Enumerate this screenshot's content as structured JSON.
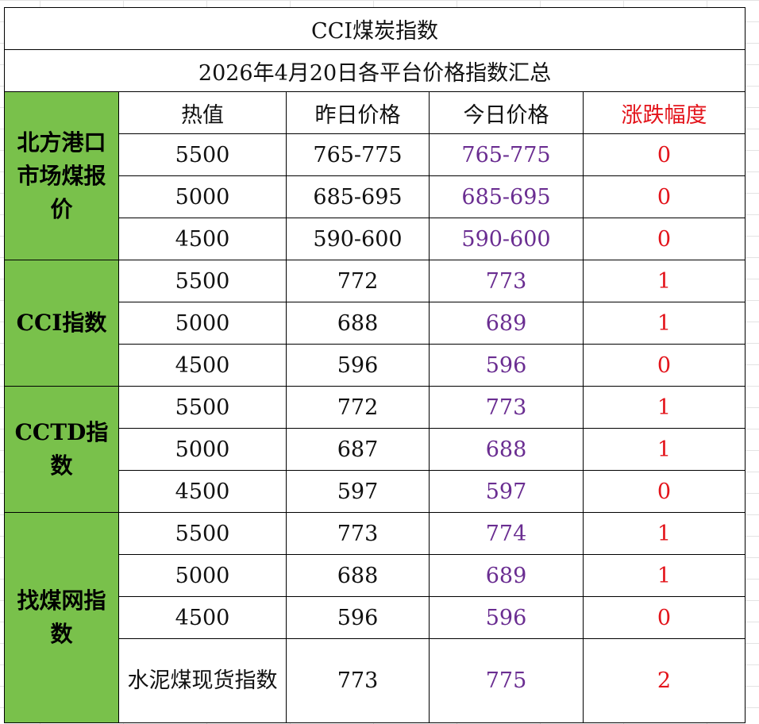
{
  "title": "CCI煤炭指数",
  "subtitle": "2026年4月20日各平台价格指数汇总",
  "headers": {
    "calorific": "热值",
    "yesterday": "昨日价格",
    "today": "今日价格",
    "change": "涨跌幅度"
  },
  "colors": {
    "group_fill": "#79c14b",
    "today_text": "#6a2d91",
    "change_text": "#e3141b"
  },
  "groups": [
    {
      "label": "北方港口市场煤报价",
      "rows": [
        {
          "calorific": "5500",
          "yesterday": "765-775",
          "today": "765-775",
          "change": "0"
        },
        {
          "calorific": "5000",
          "yesterday": "685-695",
          "today": "685-695",
          "change": "0"
        },
        {
          "calorific": "4500",
          "yesterday": "590-600",
          "today": "590-600",
          "change": "0"
        }
      ]
    },
    {
      "label": "CCI指数",
      "rows": [
        {
          "calorific": "5500",
          "yesterday": "772",
          "today": "773",
          "change": "1"
        },
        {
          "calorific": "5000",
          "yesterday": "688",
          "today": "689",
          "change": "1"
        },
        {
          "calorific": "4500",
          "yesterday": "596",
          "today": "596",
          "change": "0"
        }
      ]
    },
    {
      "label": "CCTD指数",
      "rows": [
        {
          "calorific": "5500",
          "yesterday": "772",
          "today": "773",
          "change": "1"
        },
        {
          "calorific": "5000",
          "yesterday": "687",
          "today": "688",
          "change": "1"
        },
        {
          "calorific": "4500",
          "yesterday": "597",
          "today": "597",
          "change": "0"
        }
      ]
    },
    {
      "label": "找煤网指数",
      "rows": [
        {
          "calorific": "5500",
          "yesterday": "773",
          "today": "774",
          "change": "1"
        },
        {
          "calorific": "5000",
          "yesterday": "688",
          "today": "689",
          "change": "1"
        },
        {
          "calorific": "4500",
          "yesterday": "596",
          "today": "596",
          "change": "0"
        },
        {
          "calorific": "水泥煤现货指数",
          "yesterday": "773",
          "today": "775",
          "change": "2"
        }
      ]
    }
  ]
}
